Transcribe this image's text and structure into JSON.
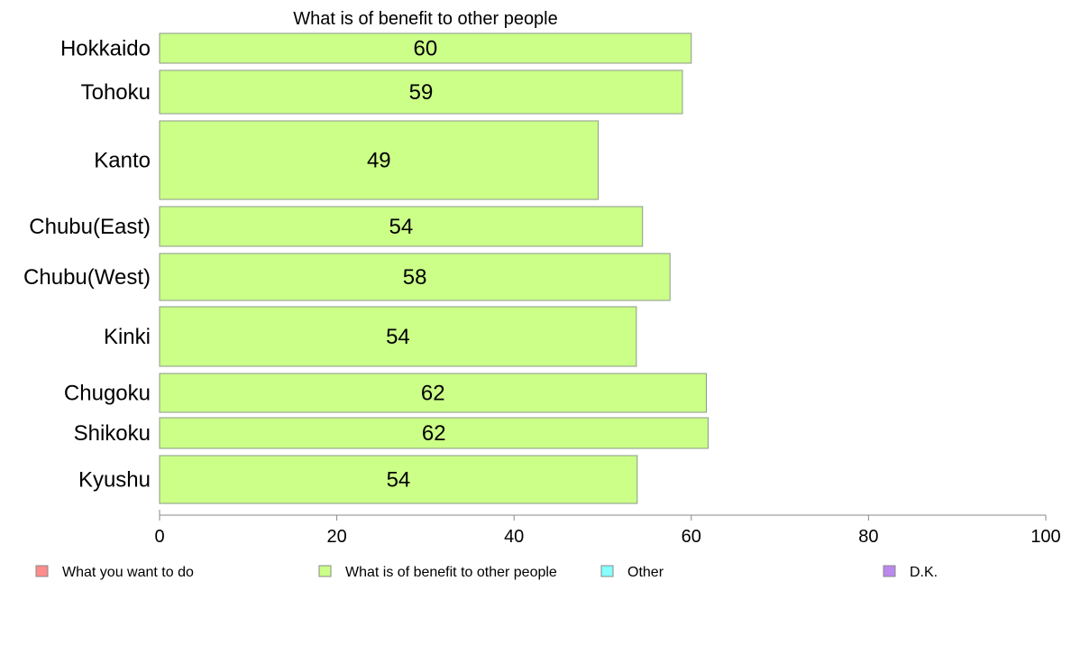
{
  "chart_data": {
    "type": "bar",
    "orientation": "horizontal",
    "title": "What is of benefit to other people",
    "categories": [
      "Hokkaido",
      "Tohoku",
      "Kanto",
      "Chubu(East)",
      "Chubu(West)",
      "Kinki",
      "Chugoku",
      "Shikoku",
      "Kyushu"
    ],
    "series": [
      {
        "name": "What is of benefit to other people",
        "values": [
          60,
          59,
          49.5,
          54.5,
          57.6,
          53.8,
          61.7,
          61.9,
          53.9
        ],
        "color": "#ccff88"
      }
    ],
    "data_labels": [
      "60",
      "59",
      "49",
      "54",
      "58",
      "54",
      "62",
      "62",
      "54"
    ],
    "xlim": [
      0,
      100
    ],
    "xticks": [
      0,
      20,
      40,
      60,
      80,
      100
    ],
    "grid": false,
    "legend": {
      "placement": "bottom",
      "entries": [
        {
          "label": "What you want to do",
          "color": "#ff8c8c"
        },
        {
          "label": "What is of benefit to other people",
          "color": "#ccff88"
        },
        {
          "label": "Other",
          "color": "#88ffff"
        },
        {
          "label": "D.K.",
          "color": "#bb88ee"
        }
      ]
    }
  }
}
